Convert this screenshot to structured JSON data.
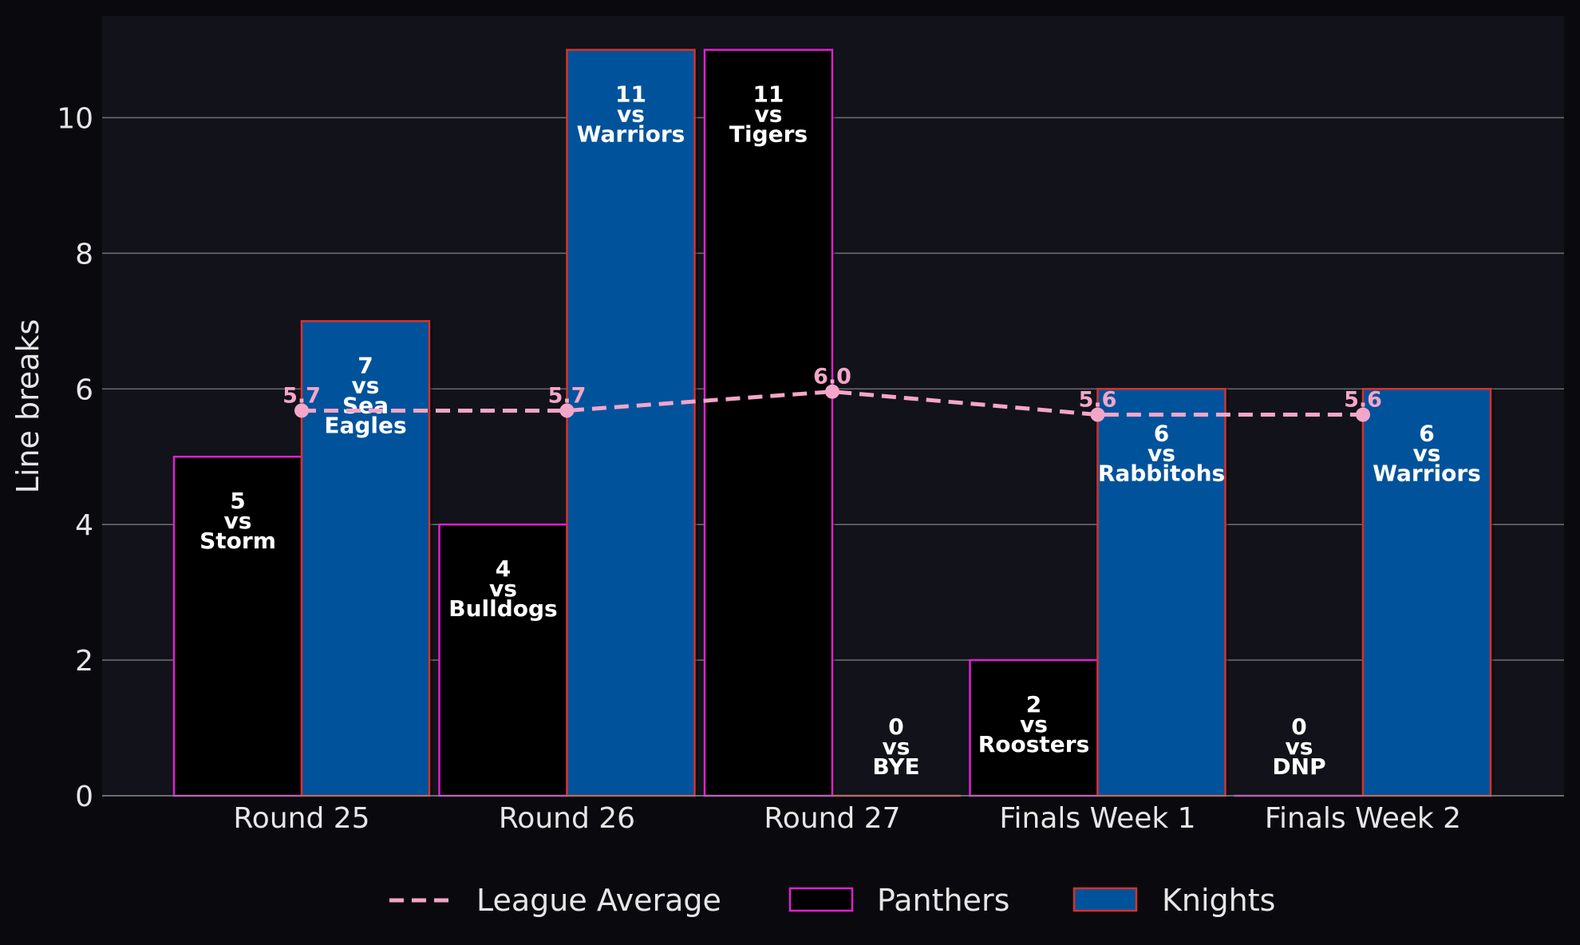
{
  "chart_data": {
    "type": "bar",
    "categories": [
      "Round 25",
      "Round 26",
      "Round 27",
      "Finals Week 1",
      "Finals Week 2"
    ],
    "ylabel": "Line breaks",
    "xlabel": "",
    "ylim": [
      0,
      11.5
    ],
    "yticks": [
      0,
      2,
      4,
      6,
      8,
      10
    ],
    "grid": "horizontal",
    "legend_position": "bottom-center",
    "series": [
      {
        "name": "Panthers",
        "kind": "bar",
        "fill": "#000000",
        "edge": "#e020d0",
        "values": [
          5,
          4,
          11,
          2,
          0
        ],
        "labels": [
          [
            "5",
            "vs",
            "Storm"
          ],
          [
            "4",
            "vs",
            "Bulldogs"
          ],
          [
            "11",
            "vs",
            "Tigers"
          ],
          [
            "2",
            "vs",
            "Roosters"
          ],
          [
            "0",
            "vs",
            "DNP"
          ]
        ]
      },
      {
        "name": "Knights",
        "kind": "bar",
        "fill": "#00529b",
        "edge": "#d8312b",
        "values": [
          7,
          11,
          0,
          6,
          6
        ],
        "labels": [
          [
            "7",
            "vs",
            "Sea",
            "Eagles"
          ],
          [
            "11",
            "vs",
            "Warriors"
          ],
          [
            "0",
            "vs",
            "BYE"
          ],
          [
            "6",
            "vs",
            "Rabbitohs"
          ],
          [
            "6",
            "vs",
            "Warriors"
          ]
        ]
      },
      {
        "name": "League Average",
        "kind": "line",
        "color": "#f4a6c8",
        "style": "dashed",
        "values": [
          5.68,
          5.68,
          5.96,
          5.62,
          5.62
        ],
        "labels": [
          "5.7",
          "5.7",
          "6.0",
          "5.6",
          "5.6"
        ]
      }
    ]
  },
  "legend": {
    "items": [
      "League Average",
      "Panthers",
      "Knights"
    ]
  }
}
